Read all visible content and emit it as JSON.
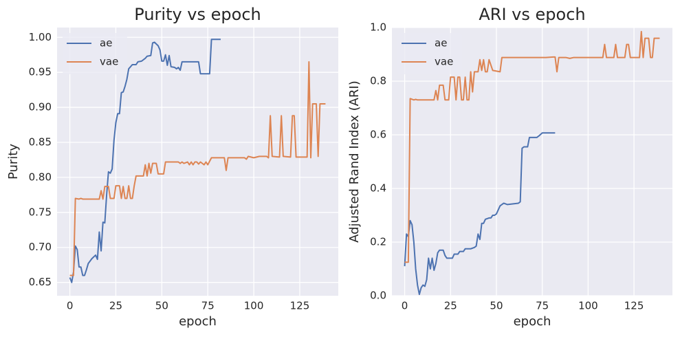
{
  "chart_data": [
    {
      "type": "line",
      "title": "Purity vs epoch",
      "xlabel": "epoch",
      "ylabel": "Purity",
      "xlim": [
        -6.95,
        145.95
      ],
      "ylim": [
        0.631,
        1.014
      ],
      "xticks": [
        0,
        25,
        50,
        75,
        100,
        125
      ],
      "yticks": [
        0.65,
        {
          "value": 0.7,
          "label": "0.70"
        },
        0.75,
        {
          "value": 0.8,
          "label": "0.80"
        },
        0.85,
        {
          "value": 0.9,
          "label": "0.90"
        },
        0.95,
        {
          "value": 1.0,
          "label": "1.00"
        }
      ],
      "grid": true,
      "legend": "upper-left",
      "series": [
        {
          "name": "ae",
          "color": "#4c72b0",
          "x": [
            0,
            1,
            2,
            3,
            4,
            5,
            6,
            7,
            8,
            9,
            10,
            12,
            14,
            15,
            16,
            17,
            18,
            19,
            20,
            21,
            22,
            23,
            24,
            25,
            26,
            27,
            28,
            29,
            30,
            31,
            32,
            33,
            34,
            36,
            37,
            39,
            41,
            42,
            44,
            45,
            46,
            48,
            49,
            50,
            51,
            52,
            53,
            54,
            55,
            57,
            58,
            59,
            60,
            61,
            66,
            67,
            70,
            71,
            75,
            76,
            77,
            82
          ],
          "values": [
            0.657,
            0.65,
            0.665,
            0.702,
            0.697,
            0.672,
            0.672,
            0.66,
            0.66,
            0.668,
            0.677,
            0.684,
            0.689,
            0.683,
            0.722,
            0.695,
            0.736,
            0.735,
            0.775,
            0.808,
            0.806,
            0.812,
            0.853,
            0.878,
            0.891,
            0.891,
            0.921,
            0.922,
            0.93,
            0.94,
            0.955,
            0.958,
            0.961,
            0.961,
            0.965,
            0.966,
            0.97,
            0.973,
            0.974,
            0.992,
            0.993,
            0.988,
            0.982,
            0.966,
            0.966,
            0.975,
            0.96,
            0.974,
            0.958,
            0.957,
            0.955,
            0.957,
            0.953,
            0.965,
            0.965,
            0.965,
            0.965,
            0.948,
            0.948,
            0.948,
            0.997,
            0.997
          ]
        },
        {
          "name": "vae",
          "color": "#dd8452",
          "x": [
            0,
            2,
            3,
            5,
            6,
            7,
            16,
            17,
            18,
            19,
            21,
            22,
            24,
            25,
            27,
            28,
            29,
            30,
            31,
            32,
            33,
            34,
            35,
            36,
            37,
            38,
            40,
            41,
            42,
            43,
            44,
            45,
            47,
            48,
            51,
            52,
            59,
            60,
            61,
            62,
            64,
            65,
            66,
            67,
            68,
            69,
            70,
            71,
            73,
            74,
            75,
            77,
            84,
            85,
            86,
            95,
            96,
            97,
            100,
            103,
            107,
            108,
            109,
            110,
            114,
            115,
            116,
            120,
            121,
            122,
            123,
            129,
            130,
            131,
            132,
            134,
            135,
            136,
            139
          ],
          "values": [
            0.66,
            0.66,
            0.77,
            0.769,
            0.77,
            0.769,
            0.769,
            0.781,
            0.769,
            0.787,
            0.787,
            0.77,
            0.77,
            0.788,
            0.788,
            0.77,
            0.787,
            0.77,
            0.77,
            0.788,
            0.77,
            0.77,
            0.788,
            0.802,
            0.802,
            0.802,
            0.802,
            0.818,
            0.802,
            0.82,
            0.806,
            0.82,
            0.82,
            0.805,
            0.805,
            0.822,
            0.822,
            0.82,
            0.822,
            0.82,
            0.822,
            0.818,
            0.822,
            0.818,
            0.822,
            0.822,
            0.819,
            0.822,
            0.818,
            0.822,
            0.818,
            0.828,
            0.828,
            0.81,
            0.828,
            0.828,
            0.826,
            0.83,
            0.828,
            0.83,
            0.83,
            0.828,
            0.888,
            0.83,
            0.829,
            0.888,
            0.83,
            0.829,
            0.888,
            0.888,
            0.829,
            0.829,
            0.965,
            0.828,
            0.905,
            0.905,
            0.83,
            0.905,
            0.905
          ]
        }
      ]
    },
    {
      "type": "line",
      "title": "ARI vs epoch",
      "xlabel": "epoch",
      "ylabel": "Adjusted Rand Index (ARI)",
      "xlim": [
        -6.95,
        145.95
      ],
      "ylim": [
        0,
        1
      ],
      "xticks": [
        0,
        25,
        50,
        75,
        100,
        125
      ],
      "yticks": [
        {
          "value": 0,
          "label": "0.0"
        },
        0.2,
        0.4,
        0.6,
        0.8,
        {
          "value": 1,
          "label": "1.0"
        }
      ],
      "grid": true,
      "legend": "upper-left",
      "series": [
        {
          "name": "ae",
          "color": "#4c72b0",
          "x": [
            0,
            1,
            2,
            3,
            4,
            5,
            6,
            7,
            8,
            9,
            10,
            11,
            12,
            13,
            14,
            15,
            16,
            17,
            18,
            19,
            21,
            22,
            23,
            26,
            27,
            29,
            30,
            32,
            33,
            36,
            38,
            39,
            40,
            41,
            42,
            43,
            44,
            46,
            47,
            48,
            49,
            50,
            51,
            52,
            54,
            56,
            62,
            63,
            64,
            65,
            67,
            68,
            72,
            73,
            75,
            82
          ],
          "values": [
            0.11,
            0.23,
            0.22,
            0.28,
            0.265,
            0.2,
            0.1,
            0.04,
            0.005,
            0.03,
            0.04,
            0.035,
            0.06,
            0.14,
            0.1,
            0.14,
            0.095,
            0.12,
            0.16,
            0.17,
            0.17,
            0.15,
            0.14,
            0.14,
            0.155,
            0.155,
            0.165,
            0.165,
            0.175,
            0.175,
            0.18,
            0.185,
            0.23,
            0.21,
            0.27,
            0.27,
            0.285,
            0.29,
            0.29,
            0.3,
            0.3,
            0.305,
            0.32,
            0.335,
            0.345,
            0.34,
            0.345,
            0.35,
            0.55,
            0.555,
            0.555,
            0.59,
            0.59,
            0.595,
            0.607,
            0.607
          ]
        },
        {
          "name": "vae",
          "color": "#dd8452",
          "x": [
            0,
            2,
            3,
            5,
            6,
            7,
            16,
            17,
            18,
            19,
            21,
            22,
            24,
            25,
            27,
            28,
            29,
            30,
            31,
            32,
            33,
            34,
            35,
            36,
            37,
            38,
            40,
            41,
            42,
            43,
            44,
            45,
            46,
            48,
            52,
            53,
            77,
            81,
            82,
            83,
            84,
            88,
            90,
            92,
            100,
            108,
            109,
            110,
            114,
            115,
            116,
            120,
            121,
            122,
            123,
            128,
            129,
            130,
            131,
            133,
            134,
            135,
            136,
            139
          ],
          "values": [
            0.125,
            0.125,
            0.735,
            0.73,
            0.732,
            0.73,
            0.73,
            0.765,
            0.73,
            0.785,
            0.785,
            0.73,
            0.73,
            0.815,
            0.815,
            0.73,
            0.815,
            0.815,
            0.73,
            0.73,
            0.815,
            0.73,
            0.73,
            0.835,
            0.76,
            0.835,
            0.835,
            0.88,
            0.84,
            0.88,
            0.835,
            0.835,
            0.88,
            0.84,
            0.835,
            0.888,
            0.888,
            0.89,
            0.89,
            0.835,
            0.888,
            0.888,
            0.885,
            0.888,
            0.888,
            0.888,
            0.937,
            0.888,
            0.888,
            0.937,
            0.888,
            0.888,
            0.937,
            0.937,
            0.888,
            0.888,
            0.985,
            0.888,
            0.96,
            0.96,
            0.888,
            0.888,
            0.96,
            0.96
          ]
        }
      ]
    }
  ]
}
